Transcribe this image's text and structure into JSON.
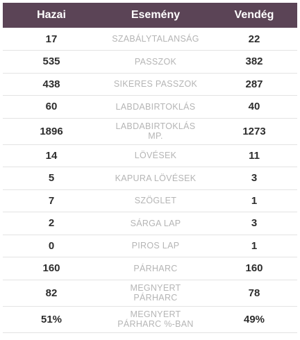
{
  "header": {
    "home": "Hazai",
    "event": "Esemény",
    "away": "Vendég"
  },
  "rows": [
    {
      "home": "17",
      "event": [
        "SZABÁLYTALANSÁG"
      ],
      "away": "22"
    },
    {
      "home": "535",
      "event": [
        "PASSZOK"
      ],
      "away": "382"
    },
    {
      "home": "438",
      "event": [
        "SIKERES PASSZOK"
      ],
      "away": "287"
    },
    {
      "home": "60",
      "event": [
        "LABDABIRTOKLÁS"
      ],
      "away": "40"
    },
    {
      "home": "1896",
      "event": [
        "LABDABIRTOKLÁS",
        "MP."
      ],
      "away": "1273"
    },
    {
      "home": "14",
      "event": [
        "LÖVÉSEK"
      ],
      "away": "11"
    },
    {
      "home": "5",
      "event": [
        "KAPURA LÖVÉSEK"
      ],
      "away": "3"
    },
    {
      "home": "7",
      "event": [
        "SZÖGLET"
      ],
      "away": "1"
    },
    {
      "home": "2",
      "event": [
        "SÁRGA LAP"
      ],
      "away": "3"
    },
    {
      "home": "0",
      "event": [
        "PIROS LAP"
      ],
      "away": "1"
    },
    {
      "home": "160",
      "event": [
        "PÁRHARC"
      ],
      "away": "160"
    },
    {
      "home": "82",
      "event": [
        "MEGNYERT",
        "PÁRHARC"
      ],
      "away": "78"
    },
    {
      "home": "51%",
      "event": [
        "MEGNYERT",
        "PÁRHARC %-BAN"
      ],
      "away": "49%"
    }
  ]
}
